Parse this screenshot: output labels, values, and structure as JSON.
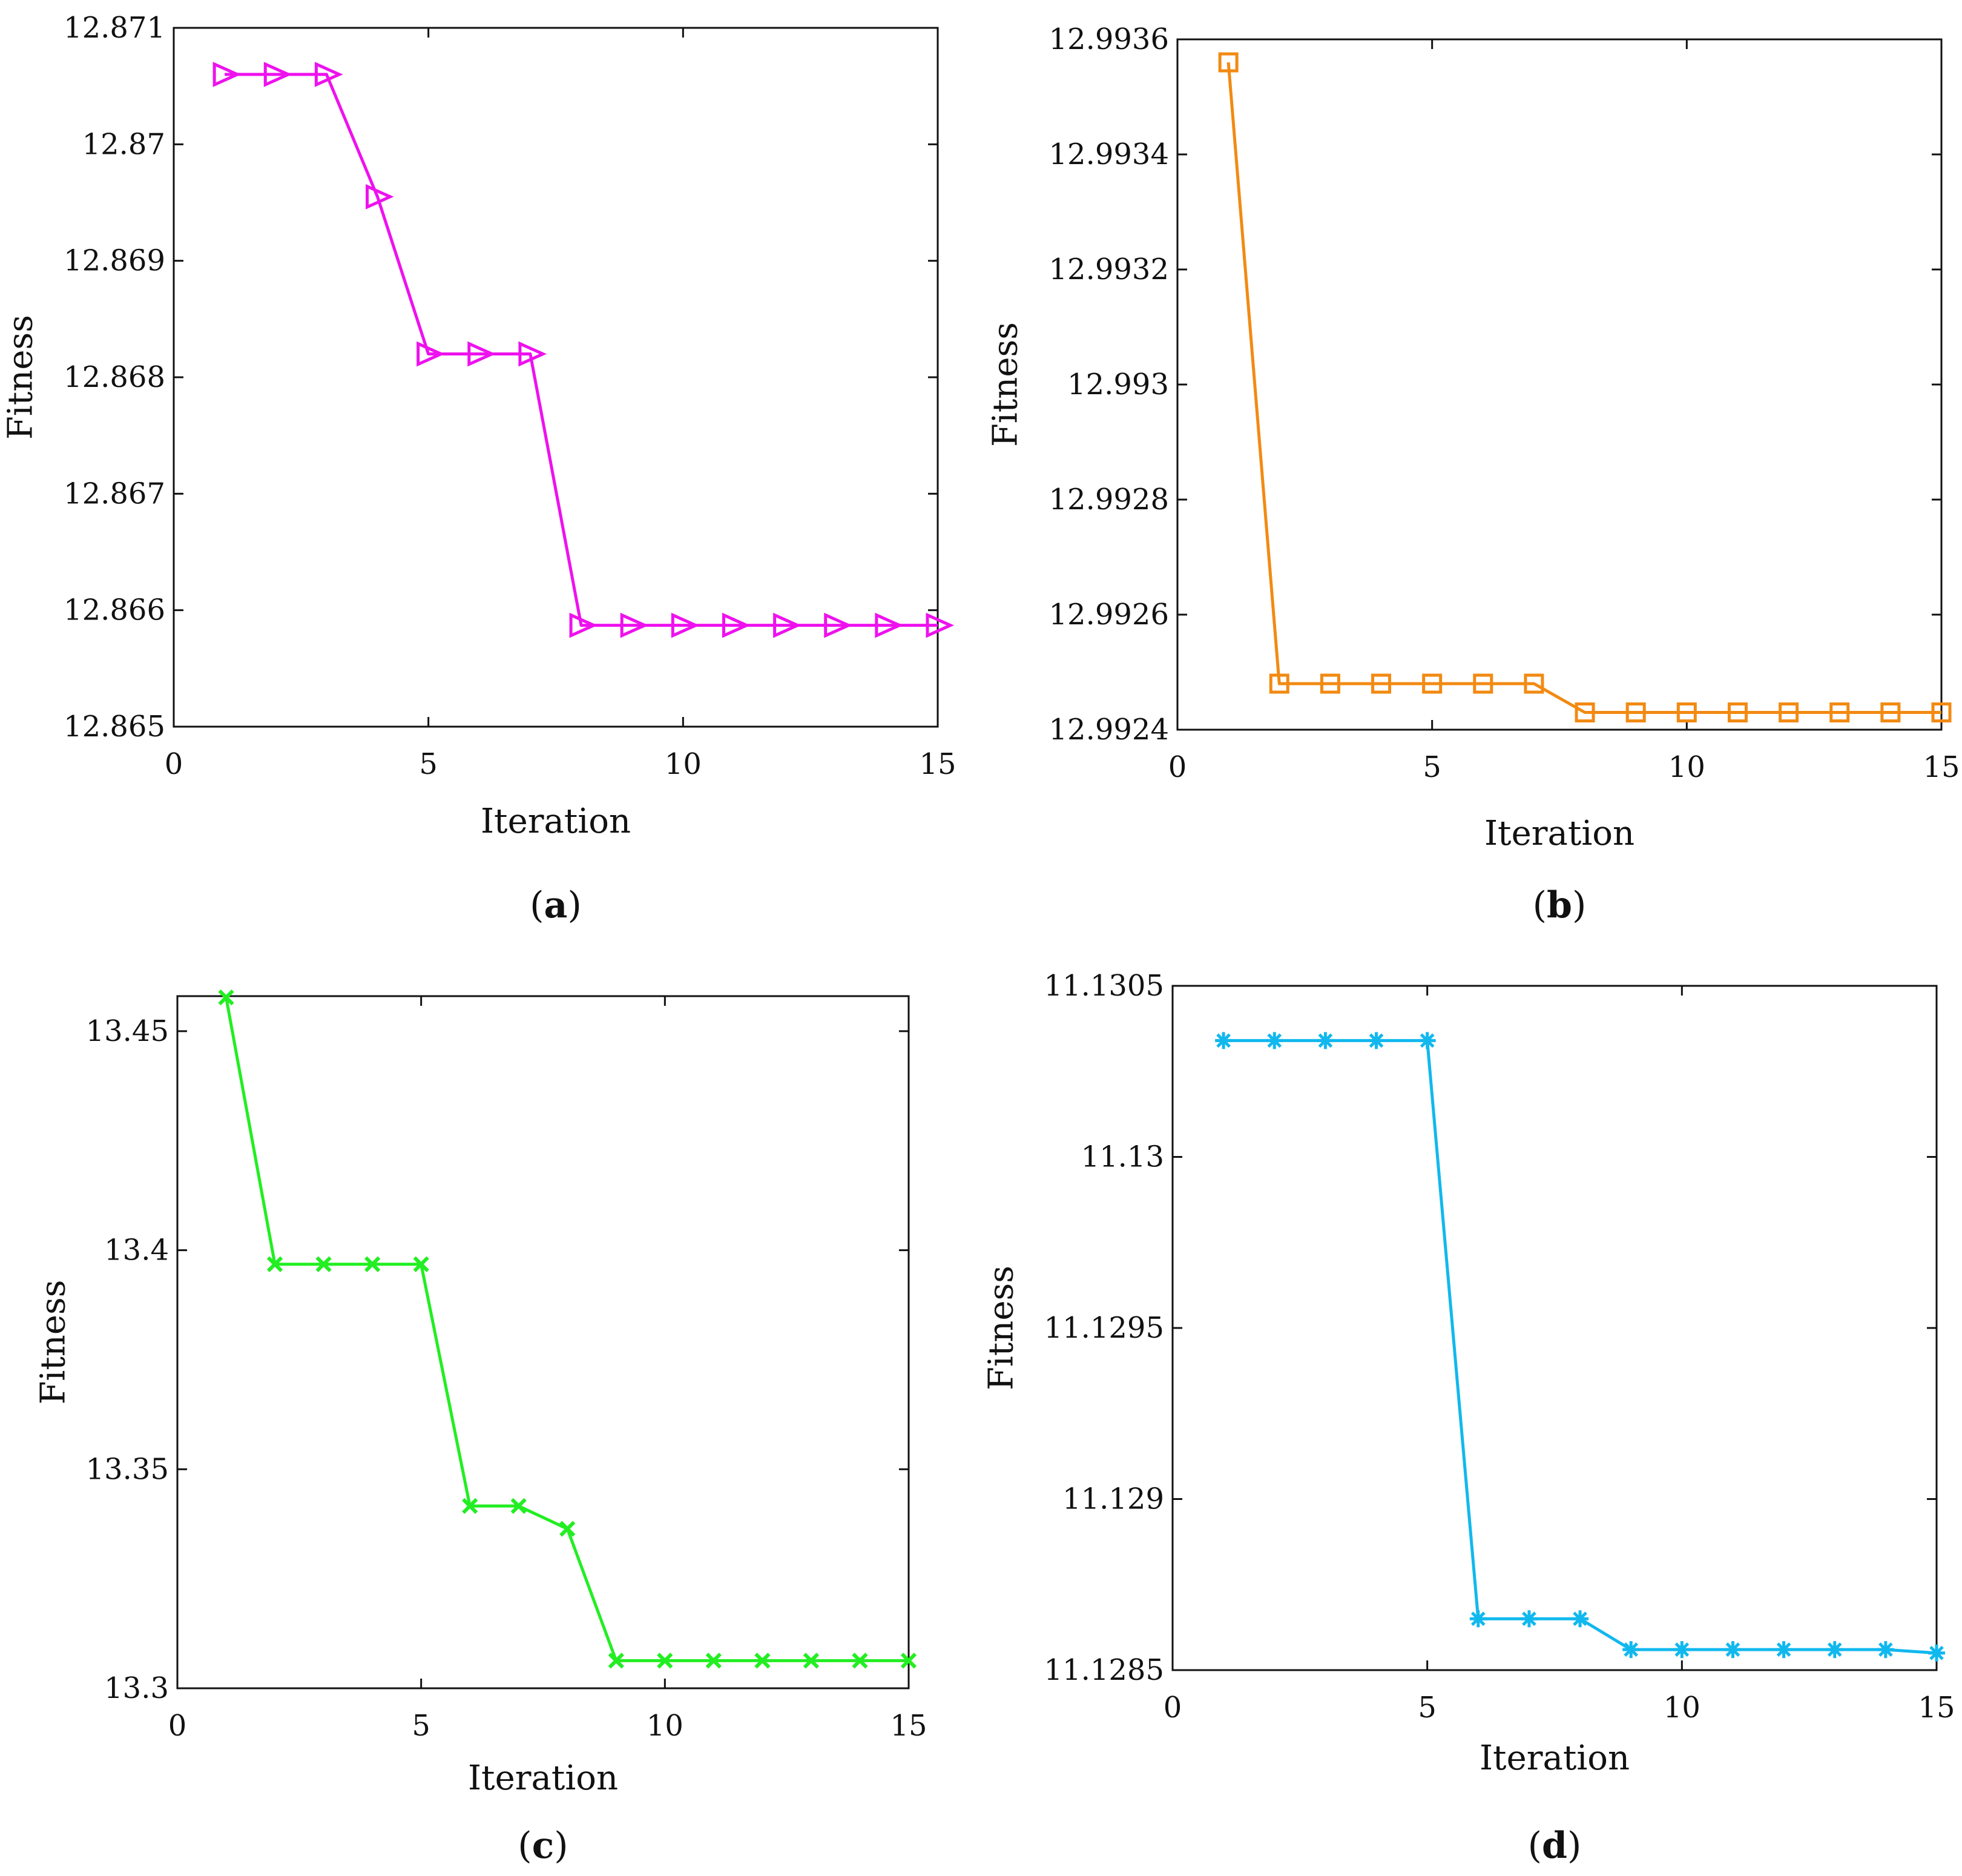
{
  "chart_data": [
    {
      "type": "line",
      "caption_letter": "a",
      "color": "#ee11ee",
      "marker": "triangle-right",
      "xlabel": "Iteration",
      "ylabel": "Fitness",
      "xlim": [
        0,
        15
      ],
      "ylim": [
        12.865,
        12.871
      ],
      "xticks": [
        "0",
        "5",
        "10",
        "15"
      ],
      "xtick_values": [
        0,
        5,
        10,
        15
      ],
      "yticks": [
        "12.865",
        "12.866",
        "12.867",
        "12.868",
        "12.869",
        "12.87",
        "12.871"
      ],
      "ytick_values": [
        12.865,
        12.866,
        12.867,
        12.868,
        12.869,
        12.87,
        12.871
      ],
      "x": [
        1,
        2,
        3,
        4,
        5,
        6,
        7,
        8,
        9,
        10,
        11,
        12,
        13,
        14,
        15
      ],
      "y": [
        12.8706,
        12.8706,
        12.8706,
        12.86955,
        12.8682,
        12.8682,
        12.8682,
        12.86587,
        12.86587,
        12.86587,
        12.86587,
        12.86587,
        12.86587,
        12.86587,
        12.86587
      ]
    },
    {
      "type": "line",
      "caption_letter": "b",
      "color": "#f28a12",
      "marker": "square",
      "xlabel": "Iteration",
      "ylabel": "Fitness",
      "xlim": [
        0,
        15
      ],
      "ylim": [
        12.9924,
        12.9936
      ],
      "xticks": [
        "0",
        "5",
        "10",
        "15"
      ],
      "xtick_values": [
        0,
        5,
        10,
        15
      ],
      "yticks": [
        "12.9924",
        "12.9926",
        "12.9928",
        "12.993",
        "12.9932",
        "12.9934",
        "12.9936"
      ],
      "ytick_values": [
        12.9924,
        12.9926,
        12.9928,
        12.993,
        12.9932,
        12.9934,
        12.9936
      ],
      "x": [
        1,
        2,
        3,
        4,
        5,
        6,
        7,
        8,
        9,
        10,
        11,
        12,
        13,
        14,
        15
      ],
      "y": [
        12.99356,
        12.99248,
        12.99248,
        12.99248,
        12.99248,
        12.99248,
        12.99248,
        12.99243,
        12.99243,
        12.99243,
        12.99243,
        12.99243,
        12.99243,
        12.99243,
        12.99243
      ]
    },
    {
      "type": "line",
      "caption_letter": "c",
      "color": "#22ee22",
      "marker": "x",
      "xlabel": "Iteration",
      "ylabel": "Fitness",
      "xlim": [
        0,
        15
      ],
      "ylim": [
        13.3,
        13.458
      ],
      "xticks": [
        "0",
        "5",
        "10",
        "15"
      ],
      "xtick_values": [
        0,
        5,
        10,
        15
      ],
      "yticks": [
        "13.3",
        "13.35",
        "13.4",
        "13.45"
      ],
      "ytick_values": [
        13.3,
        13.35,
        13.4,
        13.45
      ],
      "x": [
        1,
        2,
        3,
        4,
        5,
        6,
        7,
        8,
        9,
        10,
        11,
        12,
        13,
        14,
        15
      ],
      "y": [
        13.4577,
        13.3968,
        13.3968,
        13.3968,
        13.3968,
        13.3416,
        13.3416,
        13.3364,
        13.3063,
        13.3063,
        13.3063,
        13.3063,
        13.3063,
        13.3063,
        13.3063
      ]
    },
    {
      "type": "line",
      "caption_letter": "d",
      "color": "#11b8ee",
      "marker": "asterisk",
      "xlabel": "Iteration",
      "ylabel": "Fitness",
      "xlim": [
        0,
        15
      ],
      "ylim": [
        11.1285,
        11.1305
      ],
      "xticks": [
        "0",
        "5",
        "10",
        "15"
      ],
      "xtick_values": [
        0,
        5,
        10,
        15
      ],
      "yticks": [
        "11.1285",
        "11.129",
        "11.1295",
        "11.13",
        "11.1305"
      ],
      "ytick_values": [
        11.1285,
        11.129,
        11.1295,
        11.13,
        11.1305
      ],
      "x": [
        1,
        2,
        3,
        4,
        5,
        6,
        7,
        8,
        9,
        10,
        11,
        12,
        13,
        14,
        15
      ],
      "y": [
        11.13034,
        11.13034,
        11.13034,
        11.13034,
        11.13034,
        11.12865,
        11.12865,
        11.12865,
        11.12856,
        11.12856,
        11.12856,
        11.12856,
        11.12856,
        11.12856,
        11.12855
      ]
    }
  ]
}
